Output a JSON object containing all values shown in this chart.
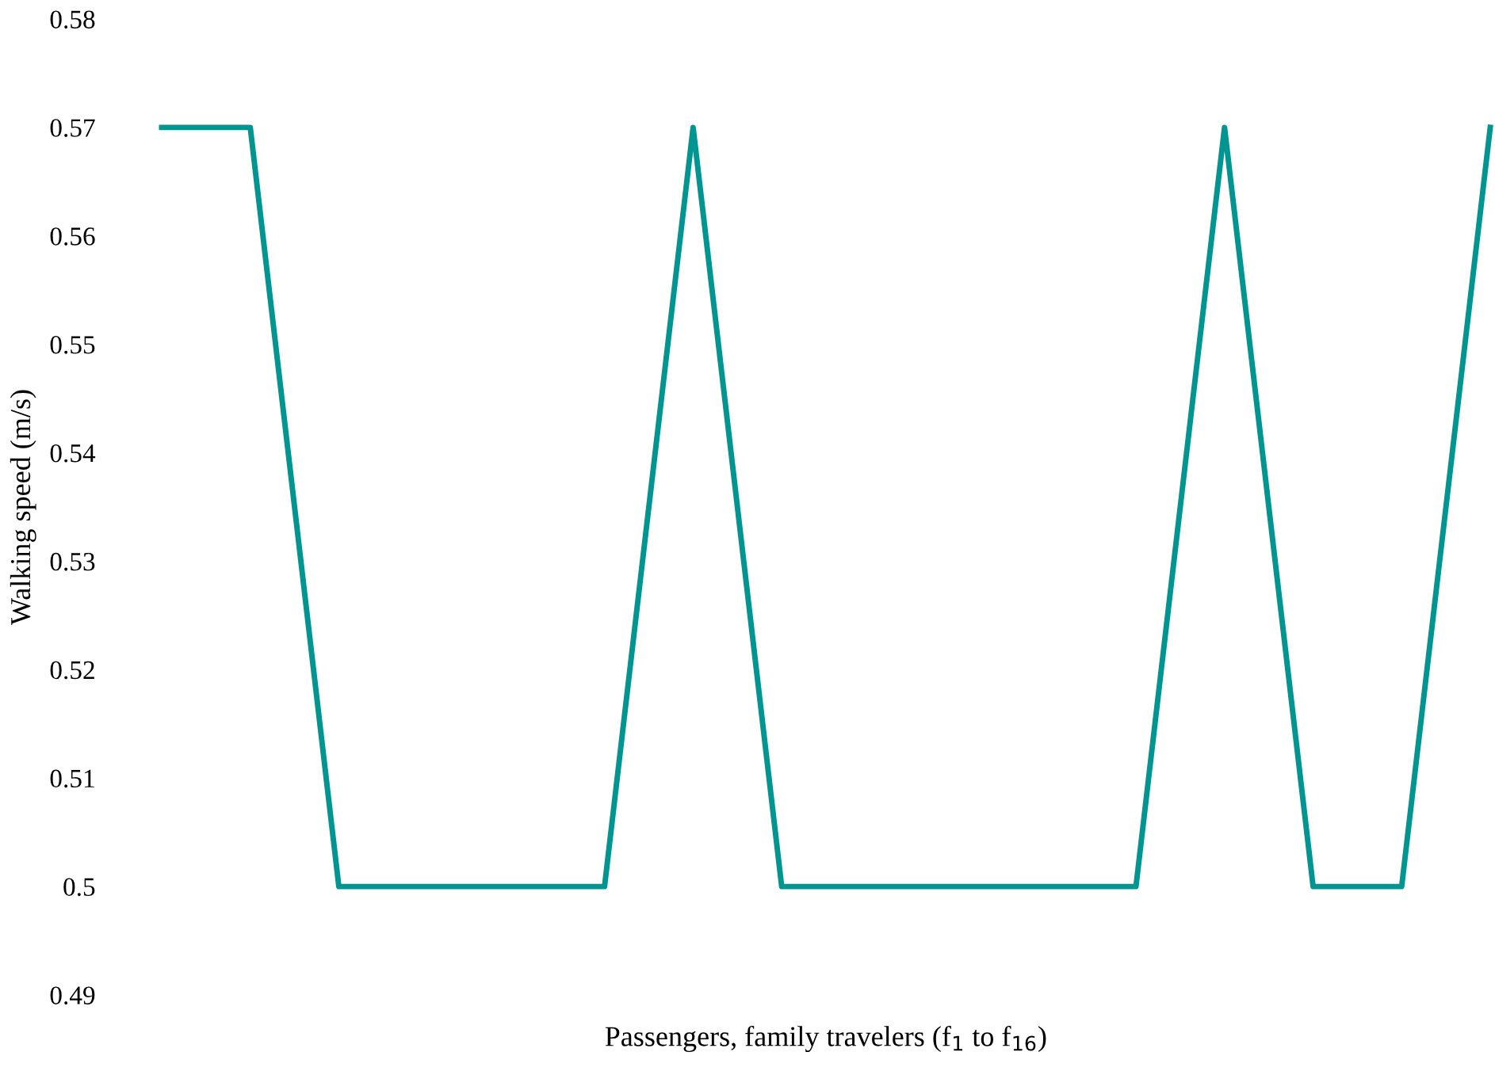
{
  "chart_data": {
    "type": "line",
    "xlabel": "Passengers, family travelers (f$_{1}$ to f$_{16}$)",
    "ylabel": "Walking speed (m/s)",
    "categories": [
      null,
      null,
      null,
      null,
      null,
      null,
      null,
      null,
      null,
      null,
      null,
      null,
      null,
      null,
      null,
      null
    ],
    "series": [
      {
        "color": "#009590",
        "values": [
          0.57,
          0.57,
          0.5,
          0.5,
          0.5,
          0.5,
          0.57,
          0.5,
          0.5,
          0.5,
          0.5,
          0.5,
          0.57,
          0.5,
          0.5,
          0.57
        ]
      }
    ],
    "ylim": [
      0.49,
      0.58
    ],
    "yticks": [
      0.49,
      {
        "value": 0.5,
        "label": "0.5"
      },
      0.51,
      0.52,
      0.53,
      0.54,
      0.55,
      0.56,
      0.57,
      0.58
    ],
    "grid": false,
    "legend": false,
    "tick_labels": "y",
    "marker": "none",
    "line_style": "solid"
  }
}
